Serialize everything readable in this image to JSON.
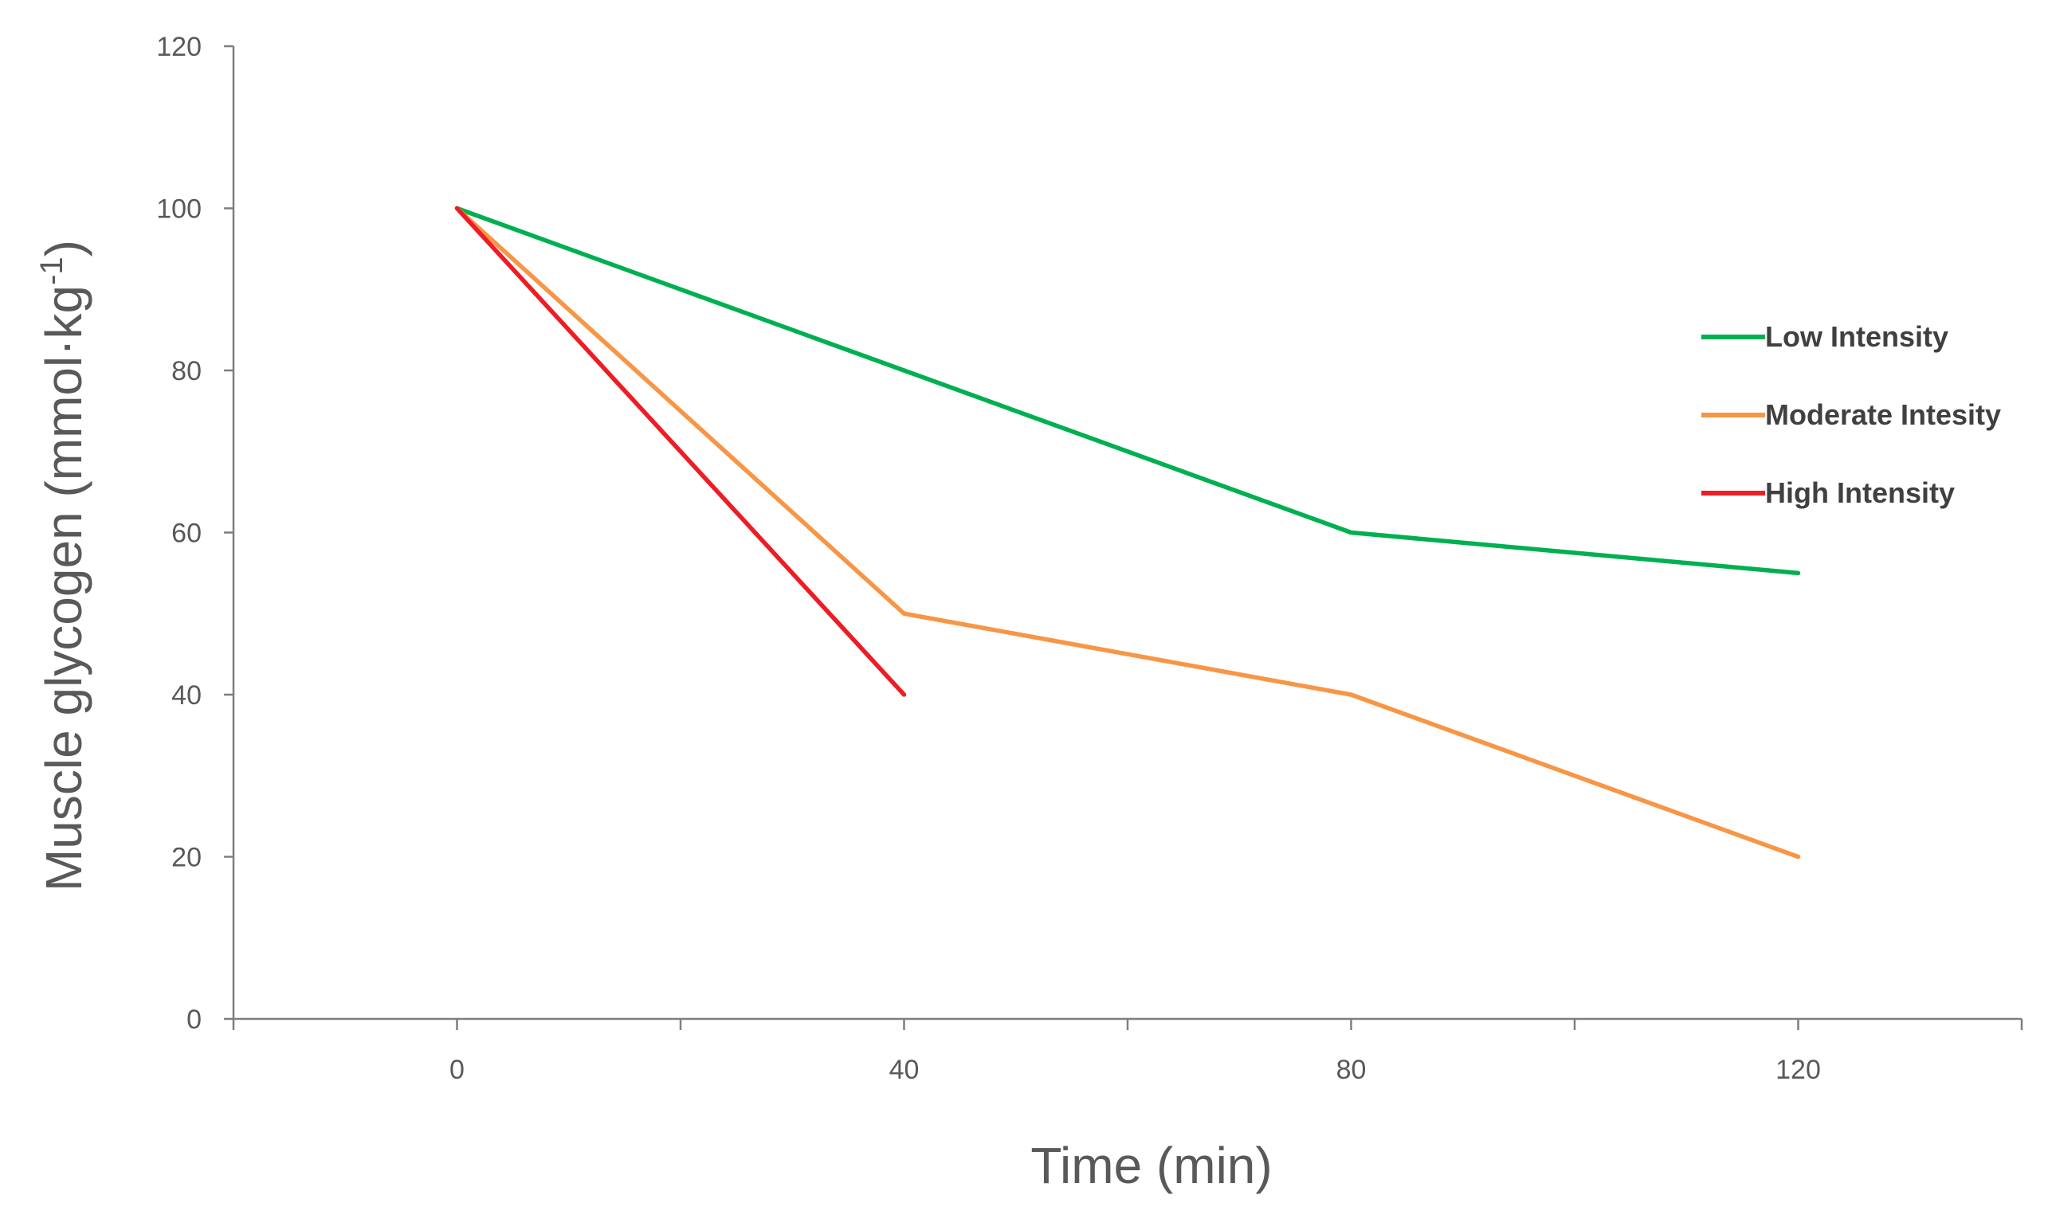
{
  "chart_data": {
    "type": "line",
    "title": "",
    "xlabel": "Time (min)",
    "ylabel_main": "Muscle glycogen (mmol·kg",
    "ylabel_sup": "-1",
    "ylabel_close": ")",
    "xlim": [
      -20,
      140
    ],
    "ylim": [
      0,
      120
    ],
    "x_ticks": [
      0,
      40,
      80,
      120
    ],
    "x_minor_ticks": [
      -20,
      20,
      60,
      100,
      140
    ],
    "y_ticks": [
      0,
      20,
      40,
      60,
      80,
      100,
      120
    ],
    "grid": false,
    "legend_position": "right",
    "series": [
      {
        "name": "Low Intensity",
        "color": "#00b050",
        "x": [
          0,
          40,
          80,
          120
        ],
        "y": [
          100,
          80,
          60,
          55
        ]
      },
      {
        "name": "Moderate Intesity",
        "color": "#f79646",
        "x": [
          0,
          40,
          80,
          120
        ],
        "y": [
          100,
          50,
          40,
          20
        ]
      },
      {
        "name": "High Intensity",
        "color": "#ee1c25",
        "x": [
          0,
          40
        ],
        "y": [
          100,
          40
        ]
      }
    ]
  }
}
